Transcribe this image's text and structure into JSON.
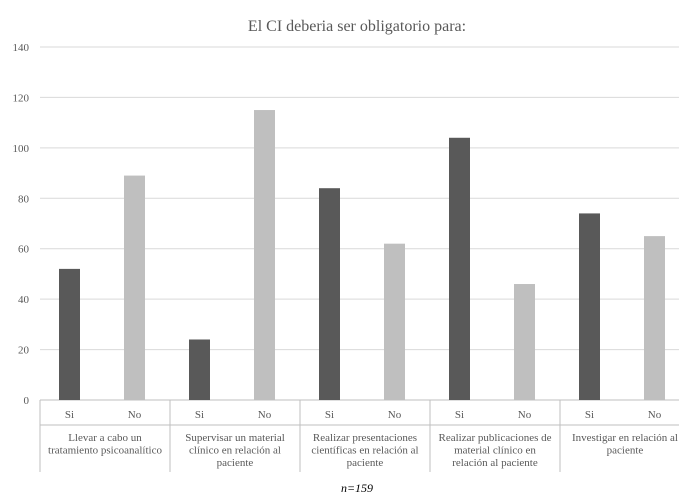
{
  "chart_data": {
    "type": "bar",
    "title": "El CI deberia ser obligatorio para:",
    "xlabel": "",
    "ylabel": "",
    "ylim": [
      0,
      140
    ],
    "yticks": [
      0,
      20,
      40,
      60,
      80,
      100,
      120,
      140
    ],
    "grid": true,
    "legend": "none",
    "groups": [
      {
        "label_lines": [
          "Llevar a cabo un",
          "tratamiento psicoanalítico"
        ]
      },
      {
        "label_lines": [
          "Supervisar un material",
          "clínico en relación al",
          "paciente"
        ]
      },
      {
        "label_lines": [
          "Realizar presentaciones",
          "científicas en relación al",
          "paciente"
        ]
      },
      {
        "label_lines": [
          "Realizar publicaciones de",
          "material clínico en",
          "relación al paciente"
        ]
      },
      {
        "label_lines": [
          "Investigar en relación al",
          "paciente"
        ]
      }
    ],
    "bars": [
      {
        "group": 0,
        "label": "Si",
        "value": 52,
        "color": "#595959"
      },
      {
        "group": 0,
        "label": "No",
        "value": 89,
        "color": "#bfbfbf"
      },
      {
        "group": 1,
        "label": "Si",
        "value": 24,
        "color": "#595959"
      },
      {
        "group": 1,
        "label": "No",
        "value": 115,
        "color": "#bfbfbf"
      },
      {
        "group": 2,
        "label": "Si",
        "value": 84,
        "color": "#595959"
      },
      {
        "group": 2,
        "label": "No",
        "value": 62,
        "color": "#bfbfbf"
      },
      {
        "group": 3,
        "label": "Si",
        "value": 104,
        "color": "#595959"
      },
      {
        "group": 3,
        "label": "No",
        "value": 46,
        "color": "#bfbfbf"
      },
      {
        "group": 4,
        "label": "Si",
        "value": 74,
        "color": "#595959"
      },
      {
        "group": 4,
        "label": "No",
        "value": 65,
        "color": "#bfbfbf"
      }
    ],
    "note": "n=159"
  }
}
